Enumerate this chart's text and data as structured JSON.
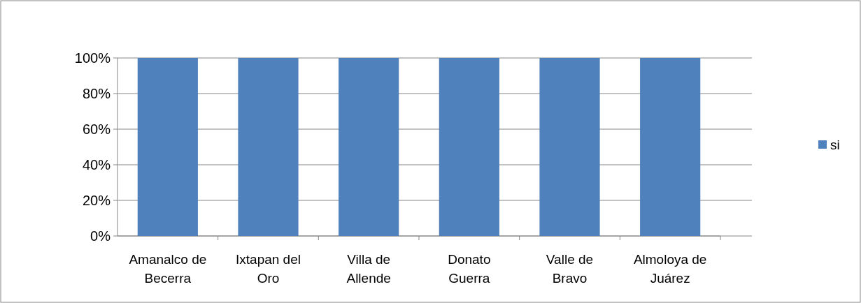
{
  "chart_data": {
    "type": "bar",
    "categories": [
      "Amanalco de Becerra",
      "Ixtapan del Oro",
      "Villa de Allende",
      "Donato Guerra",
      "Valle de Bravo",
      "Almoloya de Juárez"
    ],
    "series": [
      {
        "name": "si",
        "color": "#4f81bd",
        "values": [
          100,
          100,
          100,
          100,
          100,
          100
        ]
      }
    ],
    "ylim": [
      0,
      100
    ],
    "yticks": [
      {
        "value": 0,
        "label": "0%"
      },
      {
        "value": 20,
        "label": "20%"
      },
      {
        "value": 40,
        "label": "40%"
      },
      {
        "value": 60,
        "label": "60%"
      },
      {
        "value": 80,
        "label": "80%"
      },
      {
        "value": 100,
        "label": "100%"
      }
    ],
    "grid": "y",
    "legend": "right"
  }
}
